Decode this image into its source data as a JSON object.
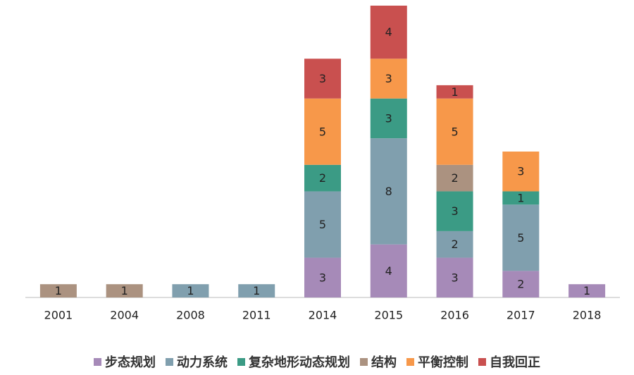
{
  "chart_data": {
    "type": "bar",
    "stacked": true,
    "categories": [
      "2001",
      "2004",
      "2008",
      "2011",
      "2014",
      "2015",
      "2016",
      "2017",
      "2018"
    ],
    "series": [
      {
        "name": "步态规划",
        "color": "#a68ab8",
        "values": [
          null,
          null,
          null,
          null,
          3,
          4,
          3,
          2,
          1
        ]
      },
      {
        "name": "动力系统",
        "color": "#809fae",
        "values": [
          null,
          null,
          1,
          1,
          5,
          8,
          2,
          5,
          null
        ]
      },
      {
        "name": "复杂地形动态规划",
        "color": "#3b9b85",
        "values": [
          null,
          null,
          null,
          null,
          2,
          3,
          3,
          1,
          null
        ]
      },
      {
        "name": "结构",
        "color": "#ab9280",
        "values": [
          1,
          1,
          null,
          null,
          null,
          null,
          2,
          null,
          null
        ]
      },
      {
        "name": "平衡控制",
        "color": "#f7984a",
        "values": [
          null,
          null,
          null,
          null,
          5,
          3,
          5,
          3,
          null
        ]
      },
      {
        "name": "自我回正",
        "color": "#c9504f",
        "values": [
          null,
          null,
          null,
          null,
          3,
          4,
          1,
          null,
          null
        ]
      }
    ],
    "ylim": [
      0,
      22
    ]
  }
}
